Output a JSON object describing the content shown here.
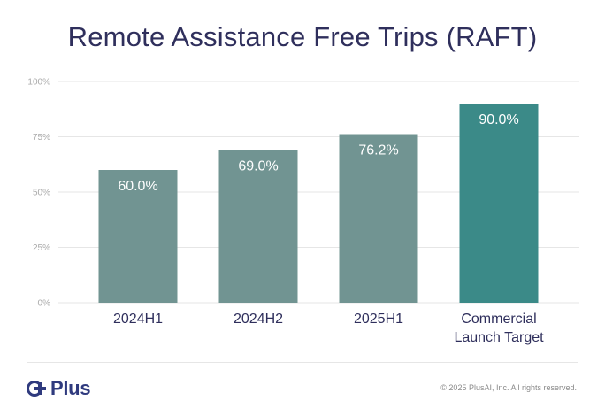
{
  "colors": {
    "bar_default": "#719492",
    "bar_highlight": "#3b8a88",
    "title": "#2f2f5c",
    "axis_label": "#aaaaaa",
    "category_label": "#2f2f5c",
    "grid": "#e6e6e6",
    "logo": "#2f3a7e"
  },
  "chart_data": {
    "type": "bar",
    "title": "Remote Assistance Free Trips (RAFT)",
    "categories": [
      "2024H1",
      "2024H2",
      "2025H1",
      "Commercial Launch Target"
    ],
    "category_lines": [
      [
        "2024H1"
      ],
      [
        "2024H2"
      ],
      [
        "2025H1"
      ],
      [
        "Commercial",
        "Launch Target"
      ]
    ],
    "values": [
      60.0,
      69.0,
      76.2,
      90.0
    ],
    "value_labels": [
      "60.0%",
      "69.0%",
      "76.2%",
      "90.0%"
    ],
    "highlight_index": 3,
    "ylim": [
      0,
      100
    ],
    "yticks": [
      0,
      25,
      50,
      75,
      100
    ],
    "ytick_labels": [
      "0%",
      "25%",
      "50%",
      "75%",
      "100%"
    ],
    "grid": true,
    "xlabel": "",
    "ylabel": ""
  },
  "footer": {
    "logo_text": "Plus",
    "copyright": "© 2025 PlusAI, Inc. All rights reserved."
  }
}
